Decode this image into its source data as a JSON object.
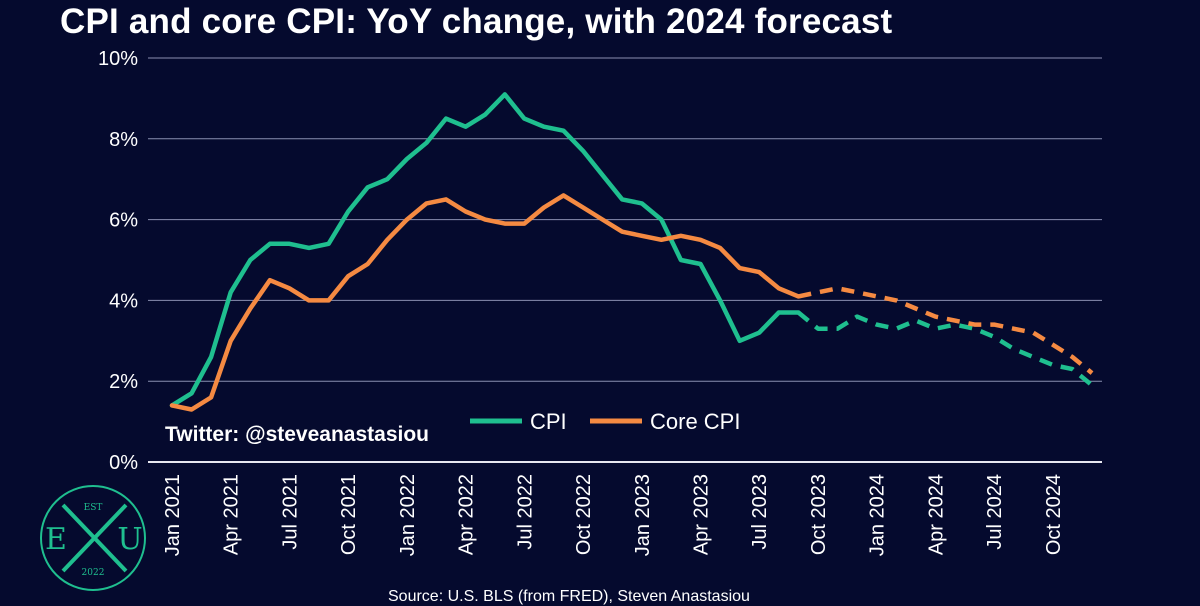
{
  "title": "CPI and core CPI: YoY change, with 2024 forecast",
  "twitter": "Twitter: @steveanastasiou",
  "source": "Source: U.S. BLS (from FRED), Steven Anastasiou",
  "logo": {
    "top": "EST",
    "left": "E",
    "right": "U",
    "bottom": "2022",
    "color": "#1fbf8f"
  },
  "chart_data": {
    "type": "line",
    "title": "CPI and core CPI: YoY change, with 2024 forecast",
    "xlabel": "",
    "ylabel": "",
    "ylim": [
      0,
      10
    ],
    "yticks": [
      "0%",
      "2%",
      "4%",
      "6%",
      "8%",
      "10%"
    ],
    "ytick_values": [
      0,
      2,
      4,
      6,
      8,
      10
    ],
    "grid": true,
    "legend": "center",
    "x": [
      "2021-01",
      "2021-02",
      "2021-03",
      "2021-04",
      "2021-05",
      "2021-06",
      "2021-07",
      "2021-08",
      "2021-09",
      "2021-10",
      "2021-11",
      "2021-12",
      "2022-01",
      "2022-02",
      "2022-03",
      "2022-04",
      "2022-05",
      "2022-06",
      "2022-07",
      "2022-08",
      "2022-09",
      "2022-10",
      "2022-11",
      "2022-12",
      "2023-01",
      "2023-02",
      "2023-03",
      "2023-04",
      "2023-05",
      "2023-06",
      "2023-07",
      "2023-08",
      "2023-09",
      "2023-10",
      "2023-11",
      "2023-12",
      "2024-01",
      "2024-02",
      "2024-03",
      "2024-04",
      "2024-05",
      "2024-06",
      "2024-07",
      "2024-08",
      "2024-09",
      "2024-10",
      "2024-11",
      "2024-12"
    ],
    "xtick_labels": [
      "Jan 2021",
      "Apr 2021",
      "Jul 2021",
      "Oct 2021",
      "Jan 2022",
      "Apr 2022",
      "Jul 2022",
      "Oct 2022",
      "Jan 2023",
      "Apr 2023",
      "Jul 2023",
      "Oct 2023",
      "Jan 2024",
      "Apr 2024",
      "Jul 2024",
      "Oct 2024"
    ],
    "xtick_positions": [
      "2021-01",
      "2021-04",
      "2021-07",
      "2021-10",
      "2022-01",
      "2022-04",
      "2022-07",
      "2022-10",
      "2023-01",
      "2023-04",
      "2023-07",
      "2023-10",
      "2024-01",
      "2024-04",
      "2024-07",
      "2024-10"
    ],
    "series": [
      {
        "name": "CPI",
        "color": "#1fbf8f",
        "actual": [
          1.4,
          1.7,
          2.6,
          4.2,
          5.0,
          5.4,
          5.4,
          5.3,
          5.4,
          6.2,
          6.8,
          7.0,
          7.5,
          7.9,
          8.5,
          8.3,
          8.6,
          9.1,
          8.5,
          8.3,
          8.2,
          7.7,
          7.1,
          6.5,
          6.4,
          6.0,
          5.0,
          4.9,
          4.0,
          3.0,
          3.2,
          3.7,
          3.7
        ],
        "forecast": [
          null,
          null,
          null,
          null,
          null,
          null,
          null,
          null,
          null,
          null,
          null,
          null,
          null,
          null,
          null,
          null,
          null,
          null,
          null,
          null,
          null,
          null,
          null,
          null,
          null,
          null,
          null,
          null,
          null,
          null,
          null,
          null,
          3.7,
          3.3,
          3.3,
          3.6,
          3.4,
          3.3,
          3.5,
          3.3,
          3.4,
          3.3,
          3.1,
          2.8,
          2.6,
          2.4,
          2.3,
          1.9
        ]
      },
      {
        "name": "Core CPI",
        "color": "#f58a42",
        "actual": [
          1.4,
          1.3,
          1.6,
          3.0,
          3.8,
          4.5,
          4.3,
          4.0,
          4.0,
          4.6,
          4.9,
          5.5,
          6.0,
          6.4,
          6.5,
          6.2,
          6.0,
          5.9,
          5.9,
          6.3,
          6.6,
          6.3,
          6.0,
          5.7,
          5.6,
          5.5,
          5.6,
          5.5,
          5.3,
          4.8,
          4.7,
          4.3,
          4.1
        ],
        "forecast": [
          null,
          null,
          null,
          null,
          null,
          null,
          null,
          null,
          null,
          null,
          null,
          null,
          null,
          null,
          null,
          null,
          null,
          null,
          null,
          null,
          null,
          null,
          null,
          null,
          null,
          null,
          null,
          null,
          null,
          null,
          null,
          null,
          4.1,
          4.2,
          4.3,
          4.2,
          4.1,
          4.0,
          3.8,
          3.6,
          3.5,
          3.4,
          3.4,
          3.3,
          3.2,
          2.9,
          2.6,
          2.2
        ]
      }
    ]
  }
}
